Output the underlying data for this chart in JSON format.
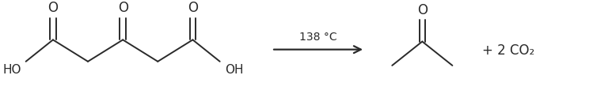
{
  "background_color": "#ffffff",
  "arrow_label": "138 °C",
  "arrow_label_fontsize": 10,
  "product_label": "+ 2 CO₂",
  "product_label_fontsize": 12,
  "line_color": "#2a2a2a",
  "line_width": 1.4,
  "figsize": [
    7.73,
    1.19
  ],
  "dpi": 100,
  "text_fontsize": 11,
  "o_fontsize": 12,
  "xlim": [
    0,
    10
  ],
  "ylim": [
    0,
    1.5
  ]
}
